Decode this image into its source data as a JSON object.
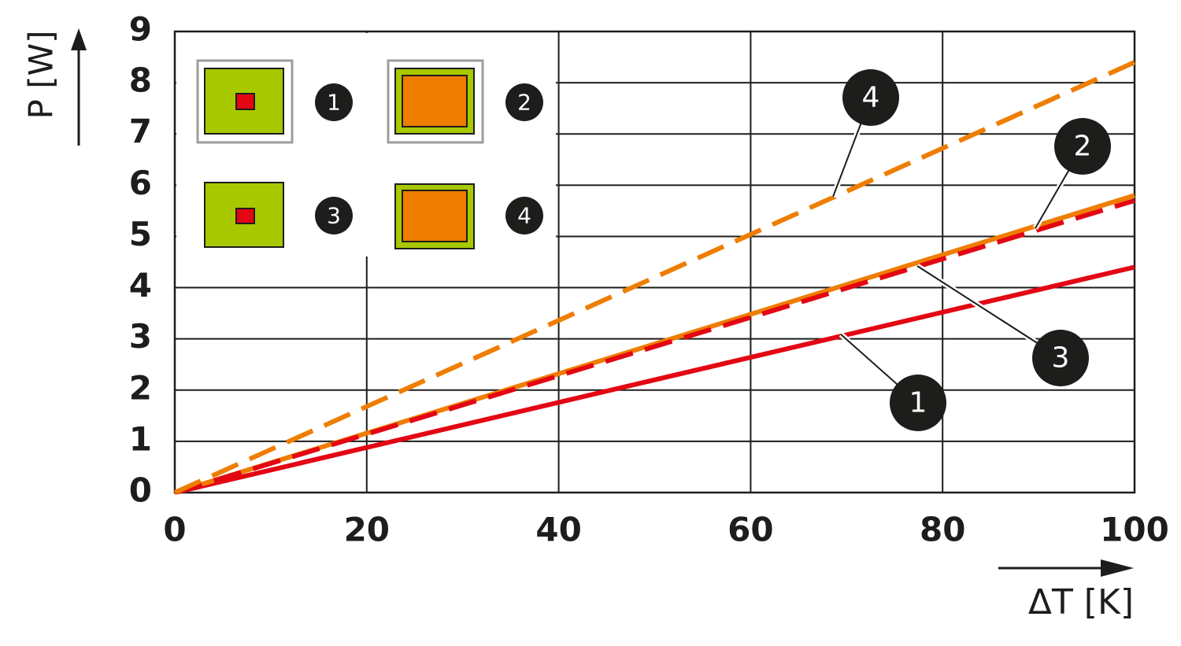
{
  "chart_data": {
    "type": "line",
    "xlabel": "ΔT [K]",
    "ylabel": "P [W]",
    "x": [
      0,
      100
    ],
    "series": [
      {
        "name": "1",
        "color": "#e30613",
        "dashed": false,
        "values": [
          0,
          4.4
        ]
      },
      {
        "name": "2",
        "color": "#ef7d00",
        "dashed": false,
        "values": [
          0,
          5.8
        ]
      },
      {
        "name": "3",
        "color": "#e30613",
        "dashed": true,
        "values": [
          0,
          5.7
        ]
      },
      {
        "name": "4",
        "color": "#ef7d00",
        "dashed": true,
        "values": [
          0,
          8.4
        ]
      }
    ],
    "xlim": [
      0,
      100
    ],
    "xticks": [
      0,
      20,
      40,
      60,
      80,
      100
    ],
    "ylim": [
      0,
      9
    ],
    "yticks": [
      0,
      1,
      2,
      3,
      4,
      5,
      6,
      7,
      8,
      9
    ],
    "grid": true
  }
}
